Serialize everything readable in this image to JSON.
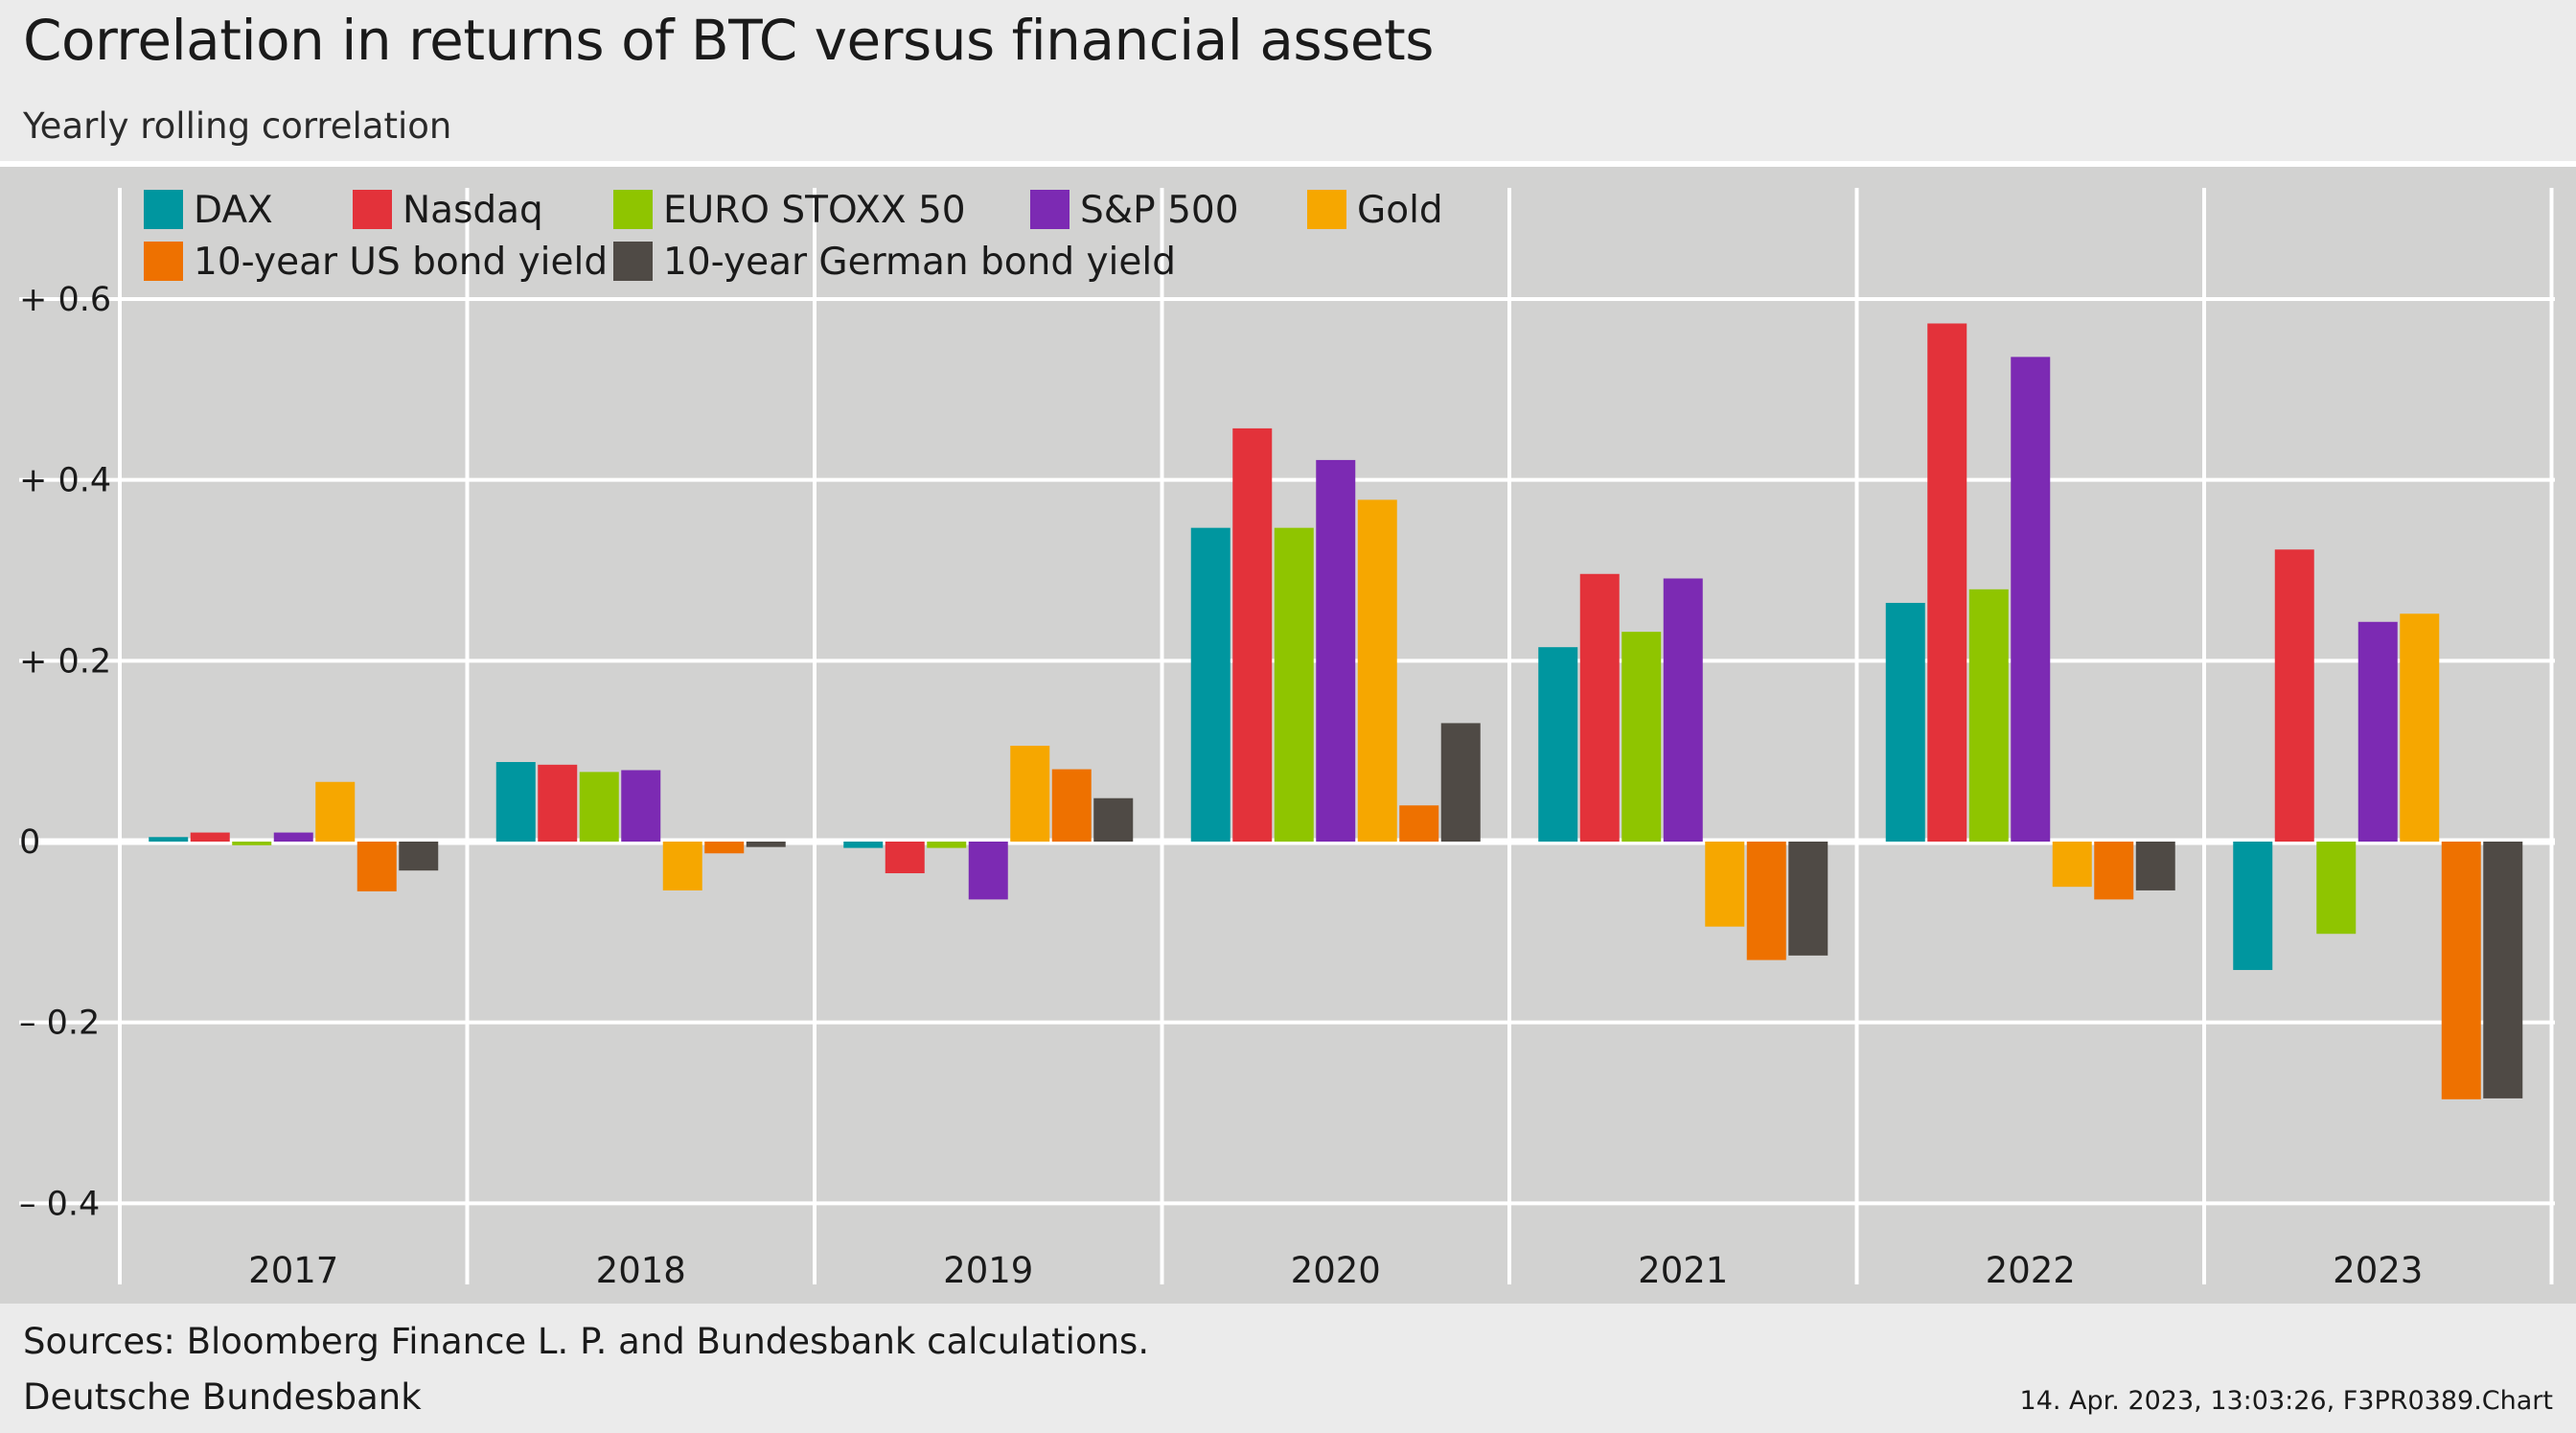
{
  "header": {
    "title": "Correlation in returns of BTC versus financial assets",
    "subtitle": "Yearly rolling correlation"
  },
  "footer": {
    "sources": "Sources: Bloomberg Finance L. P. and Bundesbank calculations.",
    "publisher": "Deutsche Bundesbank",
    "stamp": "14. Apr. 2023, 13:03:26, F3PR0389.Chart"
  },
  "chart_data": {
    "type": "bar",
    "title": "Correlation in returns of BTC versus financial assets",
    "subtitle": "Yearly rolling correlation",
    "xlabel": "",
    "ylabel": "",
    "ylim": [
      -0.4,
      0.7
    ],
    "yticks": [
      0.6,
      0.4,
      0.2,
      0,
      -0.2,
      -0.4
    ],
    "ytick_labels": [
      "+ 0.6",
      "+ 0.4",
      "+ 0.2",
      "0",
      "– 0.2",
      "– 0.4"
    ],
    "grid": true,
    "legend_position": "top-left",
    "categories": [
      "2017",
      "2018",
      "2019",
      "2020",
      "2021",
      "2022",
      "2023"
    ],
    "series": [
      {
        "name": "DAX",
        "color": "#00969f",
        "values": [
          0.005,
          0.088,
          -0.007,
          0.347,
          0.215,
          0.264,
          -0.142
        ]
      },
      {
        "name": "Nasdaq",
        "color": "#e3323a",
        "values": [
          0.01,
          0.085,
          -0.035,
          0.457,
          0.296,
          0.573,
          0.323
        ]
      },
      {
        "name": "EURO STOXX 50",
        "color": "#8fc500",
        "values": [
          -0.004,
          0.077,
          -0.007,
          0.347,
          0.232,
          0.279,
          -0.102
        ]
      },
      {
        "name": "S&P 500",
        "color": "#7c2ab3",
        "values": [
          0.01,
          0.079,
          -0.064,
          0.422,
          0.291,
          0.536,
          0.243
        ]
      },
      {
        "name": "Gold",
        "color": "#f6a700",
        "values": [
          0.066,
          -0.054,
          0.106,
          0.378,
          -0.094,
          -0.05,
          0.252
        ]
      },
      {
        "name": "10-year US bond yield",
        "color": "#ee7100",
        "values": [
          -0.055,
          -0.013,
          0.08,
          0.04,
          -0.131,
          -0.064,
          -0.285
        ]
      },
      {
        "name": "10-year German bond yield",
        "color": "#4f4a45",
        "values": [
          -0.032,
          -0.006,
          0.048,
          0.131,
          -0.126,
          -0.054,
          -0.284
        ]
      }
    ]
  }
}
